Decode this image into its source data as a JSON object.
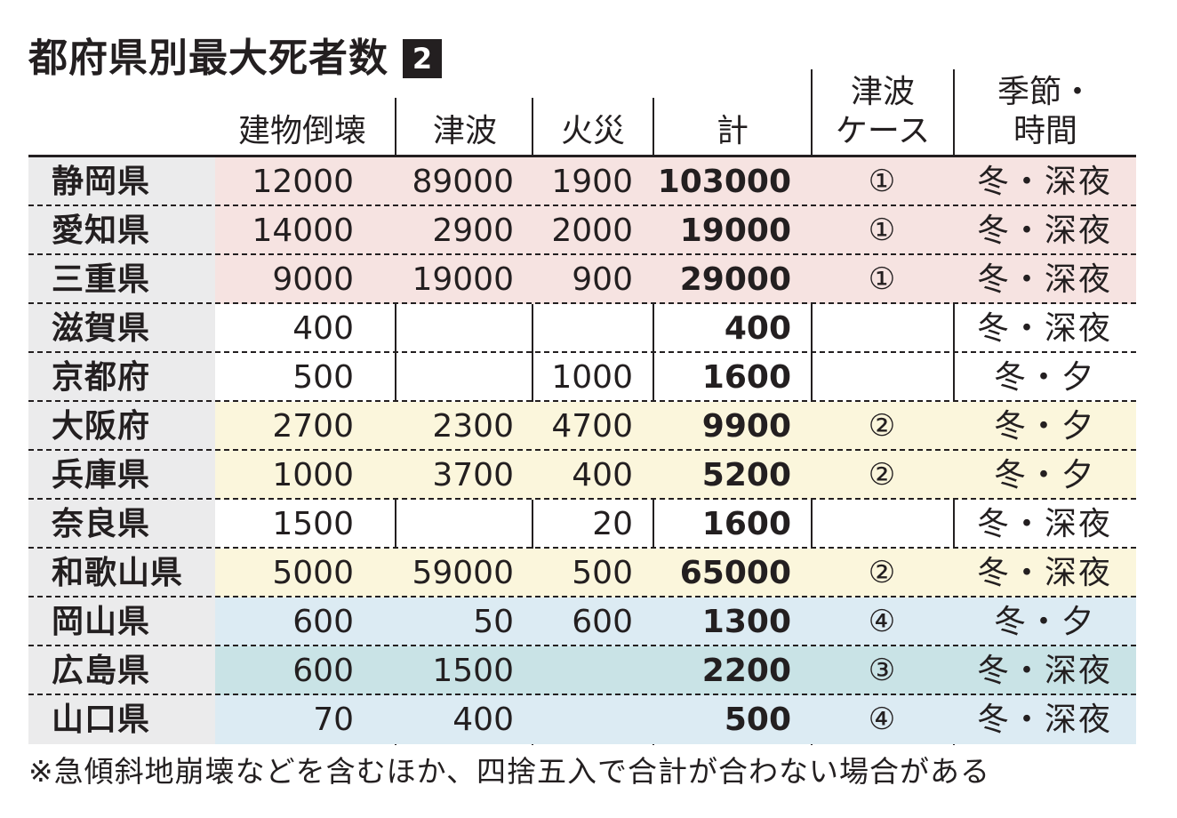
{
  "title": "都府県別最大死者数",
  "badge": "2",
  "headers": {
    "building": "建物倒壊",
    "tsunami": "津波",
    "fire": "火災",
    "total": "計",
    "case_line1": "津波",
    "case_line2": "ケース",
    "season_line1": "季節・",
    "season_line2": "時間"
  },
  "colors": {
    "pink": "#f6e3e1",
    "yellow": "#fbf6dc",
    "lightblue": "#dcebf3",
    "teal": "#c9e3e6",
    "prefecture_bg": "#ebebec"
  },
  "rows": [
    {
      "pref": "静岡県",
      "building": "12000",
      "tsunami": "89000",
      "fire": "1900",
      "total": "103000",
      "case": "①",
      "season": "冬・深夜",
      "band": "pink"
    },
    {
      "pref": "愛知県",
      "building": "14000",
      "tsunami": "2900",
      "fire": "2000",
      "total": "19000",
      "case": "①",
      "season": "冬・深夜",
      "band": "pink"
    },
    {
      "pref": "三重県",
      "building": "9000",
      "tsunami": "19000",
      "fire": "900",
      "total": "29000",
      "case": "①",
      "season": "冬・深夜",
      "band": "pink"
    },
    {
      "pref": "滋賀県",
      "building": "400",
      "tsunami": "",
      "fire": "",
      "total": "400",
      "case": "",
      "season": "冬・深夜",
      "band": "none"
    },
    {
      "pref": "京都府",
      "building": "500",
      "tsunami": "",
      "fire": "1000",
      "total": "1600",
      "case": "",
      "season": "冬・夕",
      "band": "none"
    },
    {
      "pref": "大阪府",
      "building": "2700",
      "tsunami": "2300",
      "fire": "4700",
      "total": "9900",
      "case": "②",
      "season": "冬・夕",
      "band": "yellow"
    },
    {
      "pref": "兵庫県",
      "building": "1000",
      "tsunami": "3700",
      "fire": "400",
      "total": "5200",
      "case": "②",
      "season": "冬・夕",
      "band": "yellow"
    },
    {
      "pref": "奈良県",
      "building": "1500",
      "tsunami": "",
      "fire": "20",
      "total": "1600",
      "case": "",
      "season": "冬・深夜",
      "band": "none"
    },
    {
      "pref": "和歌山県",
      "building": "5000",
      "tsunami": "59000",
      "fire": "500",
      "total": "65000",
      "case": "②",
      "season": "冬・深夜",
      "band": "yellow"
    },
    {
      "pref": "岡山県",
      "building": "600",
      "tsunami": "50",
      "fire": "600",
      "total": "1300",
      "case": "④",
      "season": "冬・夕",
      "band": "lightblue"
    },
    {
      "pref": "広島県",
      "building": "600",
      "tsunami": "1500",
      "fire": "",
      "total": "2200",
      "case": "③",
      "season": "冬・深夜",
      "band": "teal"
    },
    {
      "pref": "山口県",
      "building": "70",
      "tsunami": "400",
      "fire": "",
      "total": "500",
      "case": "④",
      "season": "冬・深夜",
      "band": "lightblue"
    }
  ],
  "footnote": "※急傾斜地崩壊などを含むほか、四捨五入で合計が合わない場合がある"
}
